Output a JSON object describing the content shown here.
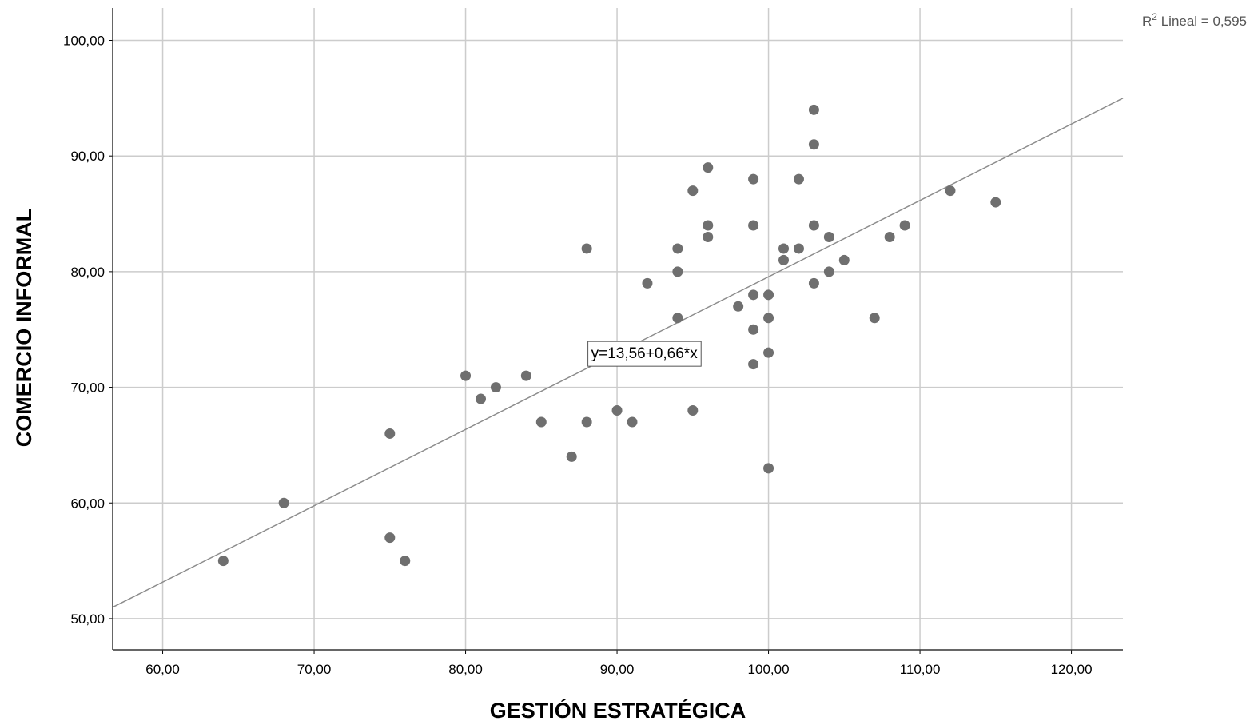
{
  "chart_data": {
    "type": "scatter",
    "xlabel": "GESTIÓN ESTRATÉGICA",
    "ylabel": "COMERCIO INFORMAL",
    "xlim": [
      56.7,
      123.4
    ],
    "ylim": [
      47.3,
      102.8
    ],
    "xticks": [
      60,
      70,
      80,
      90,
      100,
      110,
      120
    ],
    "xtick_labels": [
      "60,00",
      "70,00",
      "80,00",
      "90,00",
      "100,00",
      "110,00",
      "120,00"
    ],
    "yticks": [
      50,
      60,
      70,
      80,
      90,
      100
    ],
    "ytick_labels": [
      "50,00",
      "60,00",
      "70,00",
      "80,00",
      "90,00",
      "100,00"
    ],
    "grid": true,
    "point_color": "#6f6f6f",
    "line_color": "#8c8c8c",
    "grid_color": "#cccccc",
    "fit_line": {
      "intercept": 13.56,
      "slope": 0.66,
      "label": "y=13,56+0,66*x",
      "label_anchor": [
        91.8,
        73
      ]
    },
    "r2_label": {
      "prefix": "R",
      "superscript": "2",
      "suffix": " Lineal = 0,595"
    },
    "points": [
      {
        "x": 64,
        "y": 55
      },
      {
        "x": 68,
        "y": 60
      },
      {
        "x": 75,
        "y": 66
      },
      {
        "x": 75,
        "y": 57
      },
      {
        "x": 76,
        "y": 55
      },
      {
        "x": 80,
        "y": 71
      },
      {
        "x": 81,
        "y": 69
      },
      {
        "x": 82,
        "y": 70
      },
      {
        "x": 84,
        "y": 71
      },
      {
        "x": 85,
        "y": 67
      },
      {
        "x": 87,
        "y": 64
      },
      {
        "x": 88,
        "y": 82
      },
      {
        "x": 88,
        "y": 67
      },
      {
        "x": 90,
        "y": 68
      },
      {
        "x": 91,
        "y": 67
      },
      {
        "x": 92,
        "y": 79
      },
      {
        "x": 94,
        "y": 82
      },
      {
        "x": 94,
        "y": 80
      },
      {
        "x": 94,
        "y": 76
      },
      {
        "x": 95,
        "y": 87
      },
      {
        "x": 95,
        "y": 68
      },
      {
        "x": 96,
        "y": 89
      },
      {
        "x": 96,
        "y": 84
      },
      {
        "x": 96,
        "y": 83
      },
      {
        "x": 98,
        "y": 77
      },
      {
        "x": 99,
        "y": 88
      },
      {
        "x": 99,
        "y": 84
      },
      {
        "x": 99,
        "y": 78
      },
      {
        "x": 99,
        "y": 75
      },
      {
        "x": 99,
        "y": 72
      },
      {
        "x": 100,
        "y": 78
      },
      {
        "x": 100,
        "y": 76
      },
      {
        "x": 100,
        "y": 73
      },
      {
        "x": 100,
        "y": 63
      },
      {
        "x": 101,
        "y": 82
      },
      {
        "x": 101,
        "y": 81
      },
      {
        "x": 102,
        "y": 88
      },
      {
        "x": 102,
        "y": 82
      },
      {
        "x": 103,
        "y": 94
      },
      {
        "x": 103,
        "y": 91
      },
      {
        "x": 103,
        "y": 84
      },
      {
        "x": 103,
        "y": 79
      },
      {
        "x": 104,
        "y": 83
      },
      {
        "x": 104,
        "y": 80
      },
      {
        "x": 105,
        "y": 81
      },
      {
        "x": 107,
        "y": 76
      },
      {
        "x": 108,
        "y": 83
      },
      {
        "x": 109,
        "y": 84
      },
      {
        "x": 112,
        "y": 87
      },
      {
        "x": 115,
        "y": 86
      }
    ]
  }
}
